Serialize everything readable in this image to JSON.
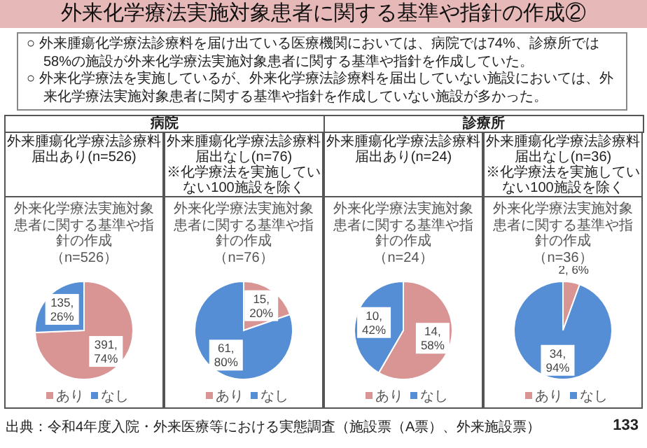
{
  "chart_data": [
    {
      "type": "other",
      "title": "外来化学療法実施対象患者に関する基準や指針の作成②",
      "annotations": [
        "○ 外来腫瘍化学療法診療料を届け出ている医療機関においては、病院では74%、診療所では58%の施設が外来化学療法実施対象患者に関する基準や指針を作成していた。",
        "○ 外来化学療法を実施しているが、外来化学療法診療料を届出していない施設においては、外来化学療法実施対象患者に関する基準や指針を作成していない施設が多かった。",
        "病院",
        "診療所",
        "出典：令和4年度入院・外来医療等における実態調査（施設票（A票）、外来施設票）",
        "133"
      ]
    },
    {
      "type": "pie",
      "title": "外来化学療法実施対象患者に関する基準や指針の作成",
      "subtitle": "（n=526）",
      "annotations": [
        "外来腫瘍化学療法診療料届出あり(n=526)"
      ],
      "categories": [
        "あり",
        "なし"
      ],
      "values": [
        391,
        135
      ],
      "value_labels": [
        "391, 74%",
        "135, 26%"
      ],
      "colors": [
        "#d99594",
        "#558ed5"
      ],
      "legend": "bottom"
    },
    {
      "type": "pie",
      "title": "外来化学療法実施対象患者に関する基準や指針の作成",
      "subtitle": "（n=76）",
      "annotations": [
        "外来腫瘍化学療法診療料届出なし(n=76)",
        "※化学療法を実施していない100施設を除く"
      ],
      "categories": [
        "あり",
        "なし"
      ],
      "values": [
        15,
        61
      ],
      "value_labels": [
        "15, 20%",
        "61, 80%"
      ],
      "colors": [
        "#d99594",
        "#558ed5"
      ],
      "legend": "bottom"
    },
    {
      "type": "pie",
      "title": "外来化学療法実施対象患者に関する基準や指針の作成",
      "subtitle": "（n=24）",
      "annotations": [
        "外来腫瘍化学療法診療料届出あり(n=24)"
      ],
      "categories": [
        "あり",
        "なし"
      ],
      "values": [
        14,
        10
      ],
      "value_labels": [
        "14, 58%",
        "10, 42%"
      ],
      "colors": [
        "#d99594",
        "#558ed5"
      ],
      "legend": "bottom"
    },
    {
      "type": "pie",
      "title": "外来化学療法実施対象患者に関する基準や指針の作成",
      "subtitle": "（n=36）",
      "annotations": [
        "外来腫瘍化学療法診療料届出なし(n=36)",
        "※化学療法を実施していない100施設を除く"
      ],
      "categories": [
        "あり",
        "なし"
      ],
      "values": [
        2,
        34
      ],
      "value_labels": [
        "2, 6%",
        "34, 94%"
      ],
      "colors": [
        "#d99594",
        "#558ed5"
      ],
      "legend": "bottom"
    }
  ]
}
